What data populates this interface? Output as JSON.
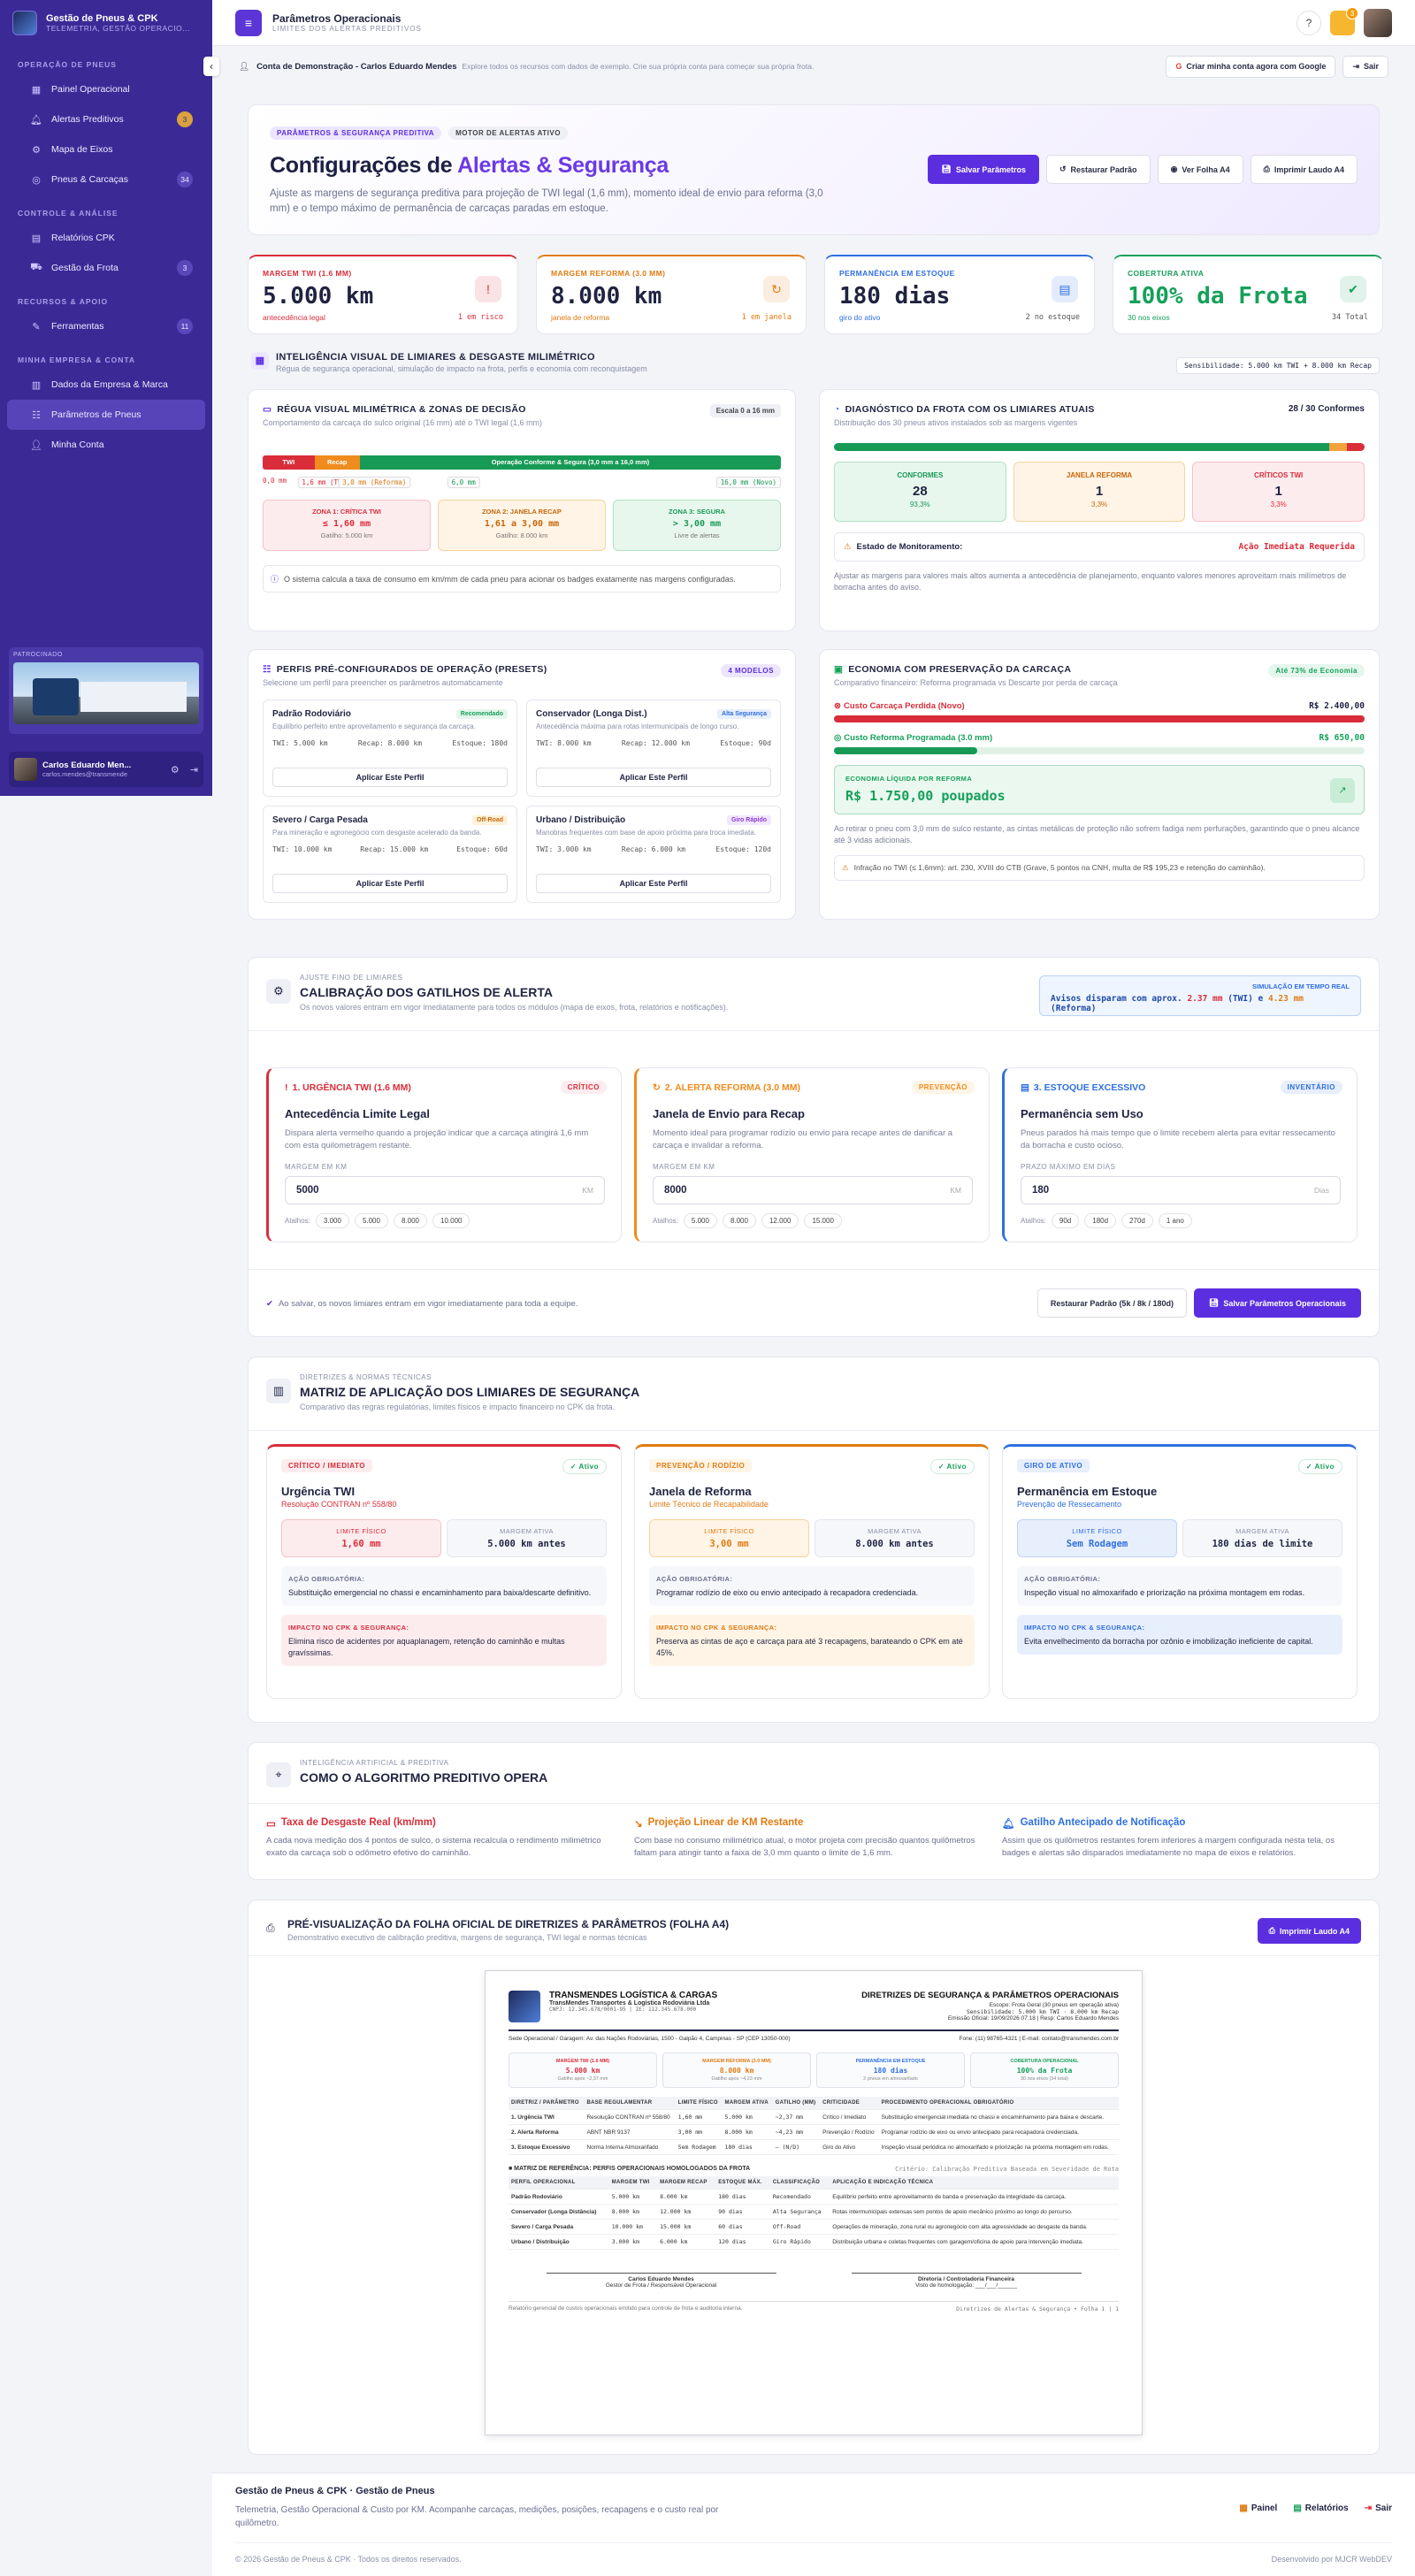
{
  "brand": {
    "title": "Gestão de Pneus & CPK",
    "subtitle": "TELEMETRIA, GESTÃO OPERACIO..."
  },
  "sidebar": {
    "sections": [
      {
        "label": "OPERAÇÃO DE PNEUS",
        "items": [
          {
            "label": "Painel Operacional",
            "icon": "grid-icon",
            "count": ""
          },
          {
            "label": "Alertas Preditivos",
            "icon": "bell-icon",
            "count": "3"
          },
          {
            "label": "Mapa de Eixos",
            "icon": "axle-icon",
            "count": ""
          },
          {
            "label": "Pneus & Carcaças",
            "icon": "tire-icon",
            "count": "34"
          }
        ]
      },
      {
        "label": "CONTROLE & ANÁLISE",
        "items": [
          {
            "label": "Relatórios CPK",
            "icon": "report-icon",
            "count": ""
          },
          {
            "label": "Gestão da Frota",
            "icon": "truck-icon",
            "count": "3"
          }
        ]
      },
      {
        "label": "RECURSOS & APOIO",
        "items": [
          {
            "label": "Ferramentas",
            "icon": "tools-icon",
            "count": "11"
          }
        ]
      },
      {
        "label": "MINHA EMPRESA & CONTA",
        "items": [
          {
            "label": "Dados da Empresa & Marca",
            "icon": "building-icon",
            "count": ""
          },
          {
            "label": "Parâmetros de Pneus",
            "icon": "sliders-icon",
            "count": ""
          },
          {
            "label": "Minha Conta",
            "icon": "user-icon",
            "count": ""
          }
        ]
      }
    ],
    "sponsor_label": "PATROCINADO",
    "user": {
      "name": "Carlos Eduardo Men...",
      "email": "carlos.mendes@transmende"
    }
  },
  "topbar": {
    "title": "Parâmetros Operacionais",
    "subtitle": "LIMITES DOS ALERTAS PREDITIVOS",
    "notif_count": "3"
  },
  "demo": {
    "title": "Conta de Demonstração - Carlos Eduardo Mendes",
    "sub": "Explore todos os recursos com dados de exemplo. Crie sua própria conta para começar sua própria frota.",
    "google_btn": "Criar minha conta agora com Google",
    "exit_btn": "Sair"
  },
  "hero": {
    "badge1": "PARÂMETROS & SEGURANÇA PREDITIVA",
    "badge2": "MOTOR DE ALERTAS ATIVO",
    "title_a": "Configurações de ",
    "title_b": "Alertas & Segurança",
    "desc": "Ajuste as margens de segurança preditiva para projeção de TWI legal (1,6 mm), momento ideal de envio para reforma (3,0 mm) e o tempo máximo de permanência de carcaças paradas em estoque.",
    "btn_save": "Salvar Parâmetros",
    "btn_restore": "Restaurar Padrão",
    "btn_view": "Ver Folha A4",
    "btn_print": "Imprimir Laudo A4"
  },
  "kpis": [
    {
      "label": "MARGEM TWI (1.6 MM)",
      "value": "5.000 km",
      "foot_l": "antecedência legal",
      "foot_r": "1 em risco",
      "color": "#d92d3a",
      "icon": "alert-icon"
    },
    {
      "label": "MARGEM REFORMA (3.0 MM)",
      "value": "8.000 km",
      "foot_l": "janela de reforma",
      "foot_r": "1 em janela",
      "color": "#e07b12",
      "icon": "refresh-icon"
    },
    {
      "label": "PERMANÊNCIA EM ESTOQUE",
      "value": "180 dias",
      "foot_l": "giro do ativo",
      "foot_r": "2 no estoque",
      "color": "#2f6fe0",
      "icon": "warehouse-icon"
    },
    {
      "label": "COBERTURA ATIVA",
      "value": "100% da Frota",
      "foot_l": "30 nos eixos",
      "foot_r": "34 Total",
      "color": "#16a05a",
      "icon": "shield-icon"
    }
  ],
  "intel": {
    "title": "INTELIGÊNCIA VISUAL DE LIMIARES & DESGASTE MILIMÉTRICO",
    "sub": "Régua de segurança operacional, simulação de impacto na frota, perfis e economia com reconquistagem",
    "sens": "Sensibilidade: 5.000 km TWI + 8.000 km Recap"
  },
  "ruler": {
    "title": "RÉGUA VISUAL MILIMÉTRICA & ZONAS DE DECISÃO",
    "scale": "Escala 0 a 16 mm",
    "sub": "Comportamento da carcaça do sulco original (16 mm) até o TWI legal (1,6 mm)",
    "seg_twi": "TWI",
    "seg_recap": "Recap",
    "seg_safe": "Operação Conforme & Segura (3,0 mm a 16,0 mm)",
    "ticks": [
      "0,0 mm",
      "1,6 mm (TWI)",
      "3,0 mm (Reforma)",
      "6,0 mm",
      "16,0 mm (Novo)"
    ],
    "zones": [
      {
        "t": "ZONA 1: CRÍTICA TWI",
        "v": "≤ 1,60 mm",
        "s": "Gatilho: 5.000 km"
      },
      {
        "t": "ZONA 2: JANELA RECAP",
        "v": "1,61 a 3,00 mm",
        "s": "Gatilho: 8.000 km"
      },
      {
        "t": "ZONA 3: SEGURA",
        "v": "> 3,00 mm",
        "s": "Livre de alertas"
      }
    ],
    "note": "O sistema calcula a taxa de consumo em km/mm de cada pneu para acionar os badges exatamente nas margens configuradas."
  },
  "diag": {
    "title": "DIAGNÓSTICO DA FROTA COM OS LIMIARES ATUAIS",
    "count": "28 / 30 Conformes",
    "sub": "Distribuição dos 30 pneus ativos instalados sob as margens vigentes",
    "stats": [
      {
        "l": "CONFORMES",
        "v": "28",
        "p": "93,3%"
      },
      {
        "l": "JANELA REFORMA",
        "v": "1",
        "p": "3,3%"
      },
      {
        "l": "CRÍTICOS TWI",
        "v": "1",
        "p": "3,3%"
      }
    ],
    "state_l": "Estado de Monitoramento:",
    "state_v": "Ação Imediata Requerida",
    "note": "Ajustar as margens para valores mais altos aumenta a antecedência de planejamento, enquanto valores menores aproveitam mais milímetros de borracha antes do aviso."
  },
  "presets": {
    "title": "PERFIS PRÉ-CONFIGURADOS DE OPERAÇÃO (PRESETS)",
    "badge": "4 MODELOS",
    "sub": "Selecione um perfil para preencher os parâmetros automaticamente",
    "apply": "Aplicar Este Perfil",
    "items": [
      {
        "n": "Padrão Rodoviário",
        "d": "Equilíbrio perfeito entre aproveitamento e segurança da carcaça.",
        "b": "Recomendado",
        "twi": "TWI: 5.000 km",
        "rec": "Recap: 8.000 km",
        "est": "Estoque: 180d"
      },
      {
        "n": "Conservador (Longa Dist.)",
        "d": "Antecedência máxima para rotas intermunicipais de longo curso.",
        "b": "Alta Segurança",
        "twi": "TWI: 8.000 km",
        "rec": "Recap: 12.000 km",
        "est": "Estoque: 90d"
      },
      {
        "n": "Severo / Carga Pesada",
        "d": "Para mineração e agronegócio com desgaste acelerado da banda.",
        "b": "Off-Road",
        "twi": "TWI: 10.000 km",
        "rec": "Recap: 15.000 km",
        "est": "Estoque: 60d"
      },
      {
        "n": "Urbano / Distribuição",
        "d": "Manobras frequentes com base de apoio próxima para troca imediata.",
        "b": "Giro Rápido",
        "twi": "TWI: 3.000 km",
        "rec": "Recap: 6.000 km",
        "est": "Estoque: 120d"
      }
    ]
  },
  "economy": {
    "title": "ECONOMIA COM PRESERVAÇÃO DA CARCAÇA",
    "badge": "Até 73% de Economia",
    "sub": "Comparativo financeiro: Reforma programada vs Descarte por perda de carcaça",
    "lost_l": "Custo Carcaça Perdida (Novo)",
    "lost_v": "R$ 2.400,00",
    "ref_l": "Custo Reforma Programada (3.0 mm)",
    "ref_v": "R$ 650,00",
    "net_l": "ECONOMIA LÍQUIDA POR REFORMA",
    "net_v": "R$ 1.750,00 poupados",
    "lost_frac": 1.0,
    "ref_frac": 0.27,
    "note": "Ao retirar o pneu com 3,0 mm de sulco restante, as cintas metálicas de proteção não sofrem fadiga nem perfurações, garantindo que o pneu alcance até 3 vidas adicionais.",
    "ctb": "Infração no TWI (≤ 1,6mm): art. 230, XVIII do CTB (Grave, 5 pontos na CNH, multa de R$ 195,23 e retenção do caminhão)."
  },
  "calib": {
    "kicker": "AJUSTE FINO DE LIMIARES",
    "title": "CALIBRAÇÃO DOS GATILHOS DE ALERTA",
    "sub": "Os novos valores entram em vigor imediatamente para todos os módulos (mapa de eixos, frota, relatórios e notificações).",
    "sim_l": "SIMULAÇÃO EM TEMPO REAL",
    "sim_a": "Avisos disparam com aprox. ",
    "sim_b": "2.37 mm",
    "sim_c": " (TWI) e ",
    "sim_d": "4.23 mm",
    "sim_e": " (Reforma)",
    "cards": [
      {
        "ttl": "1. URGÊNCIA TWI (1.6 MM)",
        "badge": "CRÍTICO",
        "h": "Antecedência Limite Legal",
        "d": "Dispara alerta vermelho quando a projeção indicar que a carcaça atingirá 1,6 mm com esta quilometragem restante.",
        "ml": "MARGEM EM KM",
        "v": "5000",
        "u": "KM",
        "at": [
          "3.000",
          "5.000",
          "8.000",
          "10.000"
        ]
      },
      {
        "ttl": "2. ALERTA REFORMA (3.0 MM)",
        "badge": "PREVENÇÃO",
        "h": "Janela de Envio para Recap",
        "d": "Momento ideal para programar rodízio ou envio para recape antes de danificar a carcaça e invalidar a reforma.",
        "ml": "MARGEM EM KM",
        "v": "8000",
        "u": "KM",
        "at": [
          "5.000",
          "8.000",
          "12.000",
          "15.000"
        ]
      },
      {
        "ttl": "3. ESTOQUE EXCESSIVO",
        "badge": "INVENTÁRIO",
        "h": "Permanência sem Uso",
        "d": "Pneus parados há mais tempo que o limite recebem alerta para evitar ressecamento da borracha e custo ocioso.",
        "ml": "PRAZO MÁXIMO EM DIAS",
        "v": "180",
        "u": "Dias",
        "at": [
          "90d",
          "180d",
          "270d",
          "1 ano"
        ]
      }
    ],
    "atalhos": "Atalhos:",
    "footer_note": "Ao salvar, os novos limiares entram em vigor imediatamente para toda a equipe.",
    "btn_restore": "Restaurar Padrão (5k / 8k / 180d)",
    "btn_save": "Salvar Parâmetros Operacionais"
  },
  "matrix": {
    "kicker": "DIRETRIZES & NORMAS TÉCNICAS",
    "title": "MATRIZ DE APLICAÇÃO DOS LIMIARES DE SEGURANÇA",
    "sub": "Comparativo das regras regulatórias, limites físicos e impacto financeiro no CPK da frota.",
    "active": "✓ Ativo",
    "lim_l": "LIMITE FÍSICO",
    "mar_l": "MARGEM ATIVA",
    "act_l": "AÇÃO OBRIGATÓRIA:",
    "imp_l": "IMPACTO NO CPK & SEGURANÇA:",
    "cards": [
      {
        "tag": "CRÍTICO / IMEDIATO",
        "h": "Urgência TWI",
        "s": "Resolução CONTRAN nº 558/80",
        "lim": "1,60 mm",
        "mar": "5.000 km antes",
        "act": "Substituição emergencial no chassi e encaminhamento para baixa/descarte definitivo.",
        "imp": "Elimina risco de acidentes por aquaplanagem, retenção do caminhão e multas gravíssimas."
      },
      {
        "tag": "PREVENÇÃO / RODÍZIO",
        "h": "Janela de Reforma",
        "s": "Limite Técnico de Recapabilidade",
        "lim": "3,00 mm",
        "mar": "8.000 km antes",
        "act": "Programar rodízio de eixo ou envio antecipado à recapadora credenciada.",
        "imp": "Preserva as cintas de aço e carcaça para até 3 recapagens, barateando o CPK em até 45%."
      },
      {
        "tag": "GIRO DE ATIVO",
        "h": "Permanência em Estoque",
        "s": "Prevenção de Ressecamento",
        "lim": "Sem Rodagem",
        "mar": "180 dias de limite",
        "act": "Inspeção visual no almoxarifado e priorização na próxima montagem em rodas.",
        "imp": "Evita envelhecimento da borracha por ozônio e imobilização ineficiente de capital."
      }
    ]
  },
  "algo": {
    "kicker": "INTELIGÊNCIA ARTIFICIAL & PREDITIVA",
    "title": "COMO O ALGORITMO PREDITIVO OPERA",
    "cols": [
      {
        "h": "Taxa de Desgaste Real (km/mm)",
        "d": "A cada nova medição dos 4 pontos de sulco, o sistema recalcula o rendimento milimétrico exato da carcaça sob o odômetro efetivo do caminhão."
      },
      {
        "h": "Projeção Linear de KM Restante",
        "d": "Com base no consumo milimétrico atual, o motor projeta com precisão quantos quilômetros faltam para atingir tanto a faixa de 3,0 mm quanto o limite de 1,6 mm."
      },
      {
        "h": "Gatilho Antecipado de Notificação",
        "d": "Assim que os quilômetros restantes forem inferiores à margem configurada nesta tela, os badges e alertas são disparados imediatamente no mapa de eixos e relatórios."
      }
    ]
  },
  "preview": {
    "title": "PRÉ-VISUALIZAÇÃO DA FOLHA OFICIAL DE DIRETRIZES & PARÂMETROS (FOLHA A4)",
    "sub": "Demonstrativo executivo de calibração preditiva, margens de segurança, TWI legal e normas técnicas",
    "btn": "Imprimir Laudo A4"
  },
  "doc": {
    "company": "TRANSMENDES LOGÍSTICA & CARGAS",
    "company2": "TransMendes Transportes & Logística Rodoviária Ltda",
    "cnpj": "CNPJ: 12.345.678/0001-95 | IE: 112.345.678.000",
    "title": "DIRETRIZES DE SEGURANÇA & PARÂMETROS OPERACIONAIS",
    "escopo": "Escopo: Frota Geral (30 pneus em operação ativa)",
    "sens": "Sensibilidade: 5.000 km TWI · 8.000 km Recap",
    "emissao": "Emissão Oficial: 19/09/2026 07:18 | Resp: Carlos Eduardo Mendes",
    "addr": "Sede Operacional / Garagem: Av. das Nações Rodoviárias, 1500 - Galpão 4, Campinas - SP (CEP 13050-000)",
    "fone": "Fone: (11) 98765-4321 | E-mail: contato@transmendes.com.br",
    "kpis": [
      {
        "l": "MARGEM TWI (1.6 MM)",
        "v": "5.000 km",
        "s": "Gatilho apos ~2,37 mm"
      },
      {
        "l": "MARGEM REFORMA (3.0 MM)",
        "v": "8.000 km",
        "s": "Gatilho apos ~4,23 mm"
      },
      {
        "l": "PERMANÊNCIA EM ESTOQUE",
        "v": "180 dias",
        "s": "2 pneus em almoxarifado"
      },
      {
        "l": "COBERTURA OPERACIONAL",
        "v": "100% da Frota",
        "s": "30 nos eixos (34 total)"
      }
    ],
    "t1_head": [
      "DIRETRIZ / PARÂMETRO",
      "BASE REGULAMENTAR",
      "LIMITE FÍSICO",
      "MARGEM ATIVA",
      "GATILHO (MM)",
      "CRITICIDADE",
      "PROCEDIMENTO OPERACIONAL OBRIGATÓRIO"
    ],
    "t1": [
      [
        "1. Urgência TWI",
        "Resolução CONTRAN nº 558/80",
        "1,60 mm",
        "5.000 km",
        "~2,37 mm",
        "Crítico / Imediato",
        "Substituição emergencial imediata no chassi e encaminhamento para baixa e descarte."
      ],
      [
        "2. Alerta Reforma",
        "ABNT NBR 9137",
        "3,00 mm",
        "8.000 km",
        "~4,23 mm",
        "Prevenção / Rodízio",
        "Programar rodízio de eixo ou envio antecipado para recapadora credenciada."
      ],
      [
        "3. Estoque Excessivo",
        "Norma Interna Almoxarifado",
        "Sem Rodagem",
        "180 dias",
        "— (N/D)",
        "Giro do Ativo",
        "Inspeção visual periódica no almoxarifado e priorização na próxima montagem em rodas."
      ]
    ],
    "t2_title": "■ MATRIZ DE REFERÊNCIA: PERFIS OPERACIONAIS HOMOLOGADOS DA FROTA",
    "t2_note": "Critério: Calibração Preditiva Baseada em Severidade de Rota",
    "t2_head": [
      "PERFIL OPERACIONAL",
      "MARGEM TWI",
      "MARGEM RECAP",
      "ESTOQUE MÁX.",
      "CLASSIFICAÇÃO",
      "APLICAÇÃO E INDICAÇÃO TÉCNICA"
    ],
    "t2": [
      [
        "Padrão Rodoviário",
        "5.000 km",
        "8.000 km",
        "180 dias",
        "Recomendado",
        "Equilíbrio perfeito entre aproveitamento de banda e preservação da integridade da carcaça."
      ],
      [
        "Conservador (Longa Distância)",
        "8.000 km",
        "12.000 km",
        "90 dias",
        "Alta Segurança",
        "Rotas intermunicipais extensas sem pontos de apoio mecânico próximo ao longo do percurso."
      ],
      [
        "Severo / Carga Pesada",
        "10.000 km",
        "15.000 km",
        "60 dias",
        "Off-Road",
        "Operações de mineração, zona rural ou agronegócio com alta agressividade ao desgaste da banda."
      ],
      [
        "Urbano / Distribuição",
        "3.000 km",
        "6.000 km",
        "120 dias",
        "Giro Rápido",
        "Distribuição urbana e coletas frequentes com garagem/oficina de apoio para intervenção imediata."
      ]
    ],
    "sig1": "Carlos Eduardo Mendes",
    "sig1s": "Gestor de Frota / Responsável Operacional",
    "sig2": "Diretoria / Controladoria Financeira",
    "sig2s": "Visto de homologação: ___/___/______",
    "foot_l": "Relatório gerencial de custos operacionais emitido para controle de frota e auditoria interna.",
    "foot_r": "Diretrizes de Alertas & Segurança • Folha 1 | 1"
  },
  "footer": {
    "title": "Gestão de Pneus & CPK · Gestão de Pneus",
    "desc": "Telemetria, Gestão Operacional & Custo por KM. Acompanhe carcaças, medições, posições, recapagens e o custo real por quilômetro.",
    "links": [
      "Painel",
      "Relatórios",
      "Sair"
    ],
    "copy": "© 2026 Gestão de Pneus & CPK · Todos os direitos reservados.",
    "dev": "Desenvolvido por MJCR WebDEV"
  }
}
